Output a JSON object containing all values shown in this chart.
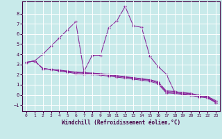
{
  "xlabel": "Windchill (Refroidissement éolien,°C)",
  "background_color": "#c8eaea",
  "grid_color": "#aadddd",
  "line_color": "#882299",
  "xlim": [
    -0.5,
    23.5
  ],
  "ylim": [
    -1.6,
    9.2
  ],
  "xticks": [
    0,
    1,
    2,
    3,
    4,
    5,
    6,
    7,
    8,
    9,
    10,
    11,
    12,
    13,
    14,
    15,
    16,
    17,
    18,
    19,
    20,
    21,
    22,
    23
  ],
  "yticks": [
    -1,
    0,
    1,
    2,
    3,
    4,
    5,
    6,
    7,
    8
  ],
  "line1_x": [
    0,
    1,
    2,
    3,
    4,
    5,
    6,
    7,
    8,
    9,
    10,
    11,
    12,
    13,
    14,
    15,
    16,
    17,
    18,
    19,
    20,
    21,
    22,
    23
  ],
  "line1_y": [
    3.2,
    3.35,
    2.6,
    2.5,
    2.35,
    2.25,
    2.1,
    2.05,
    2.0,
    1.95,
    1.85,
    1.75,
    1.65,
    1.55,
    1.45,
    1.35,
    1.1,
    0.2,
    0.15,
    0.05,
    -0.05,
    -0.2,
    -0.3,
    -0.75
  ],
  "line2_x": [
    0,
    1,
    2,
    3,
    4,
    5,
    6,
    7,
    8,
    9,
    10,
    11,
    12,
    13,
    14,
    15,
    16,
    17,
    18,
    19,
    20,
    21,
    22,
    23
  ],
  "line2_y": [
    3.2,
    3.35,
    2.6,
    2.5,
    2.4,
    2.3,
    2.2,
    2.15,
    2.1,
    2.05,
    1.95,
    1.85,
    1.75,
    1.65,
    1.55,
    1.45,
    1.2,
    0.3,
    0.25,
    0.1,
    0.0,
    -0.1,
    -0.2,
    -0.65
  ],
  "line3_x": [
    0,
    1,
    2,
    3,
    4,
    5,
    6,
    7,
    8,
    9,
    10,
    11,
    12,
    13,
    14,
    15,
    16,
    17,
    18,
    19,
    20,
    21,
    22,
    23
  ],
  "line3_y": [
    3.2,
    3.35,
    2.6,
    2.5,
    2.45,
    2.35,
    2.25,
    2.2,
    2.15,
    2.1,
    2.0,
    1.9,
    1.8,
    1.7,
    1.6,
    1.5,
    1.3,
    0.4,
    0.35,
    0.2,
    0.1,
    -0.05,
    -0.15,
    -0.55
  ],
  "line4_x": [
    1,
    2,
    3,
    4,
    5,
    6,
    7,
    8,
    9,
    10,
    11,
    12,
    13,
    14,
    15,
    16,
    17,
    18,
    19,
    20,
    21,
    22,
    23
  ],
  "line4_y": [
    3.35,
    4.0,
    4.8,
    5.6,
    6.4,
    7.2,
    2.3,
    3.9,
    3.9,
    6.6,
    7.3,
    8.7,
    6.8,
    6.65,
    3.8,
    2.8,
    2.05,
    0.3,
    0.25,
    0.15,
    -0.05,
    -0.15,
    -0.75
  ]
}
